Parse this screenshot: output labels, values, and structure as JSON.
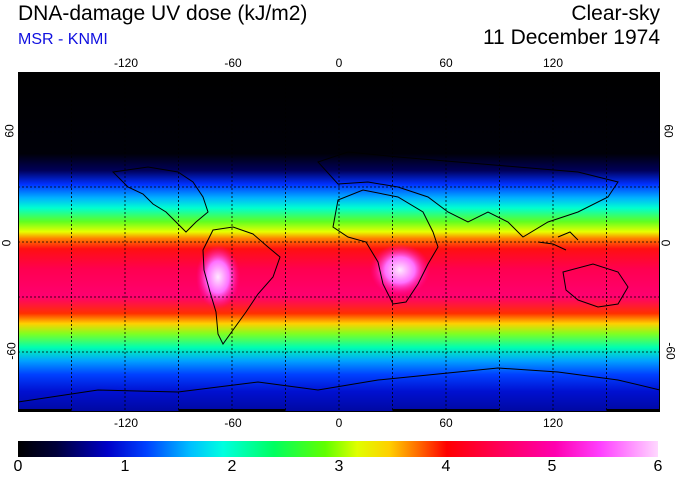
{
  "header": {
    "title": "DNA-damage UV dose (kJ/m2)",
    "source": "MSR - KNMI",
    "condition": "Clear-sky",
    "date": "11 December 1974"
  },
  "map": {
    "lon_labels": [
      "-120",
      "-60",
      "0",
      "60",
      "120"
    ],
    "lat_labels": [
      "60",
      "0",
      "-60"
    ]
  },
  "colorbar": {
    "labels": [
      "0",
      "1",
      "2",
      "3",
      "4",
      "5",
      "6"
    ],
    "min": 0,
    "max": 6
  },
  "colors": {
    "subtitle": "#1010e0",
    "night": "#000000",
    "low": "#0000c8",
    "mid": "#00ff60",
    "high": "#ff0000",
    "peak": "#ffd8ff"
  }
}
